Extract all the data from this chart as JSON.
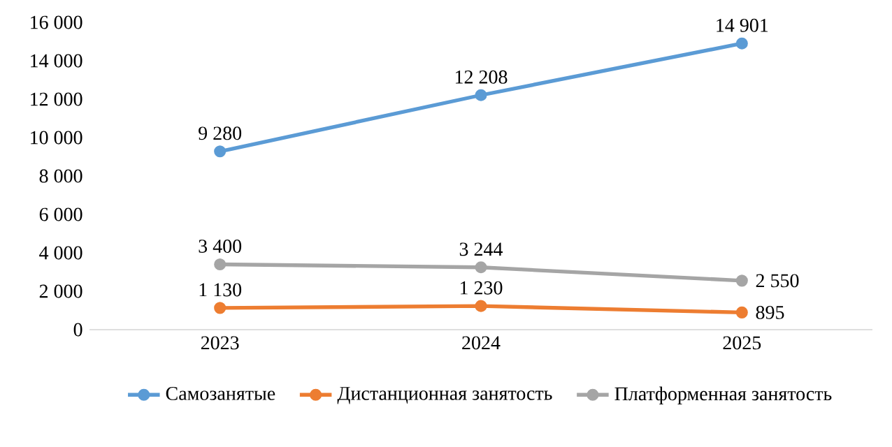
{
  "chart_data": {
    "type": "line",
    "categories": [
      "2023",
      "2024",
      "2025"
    ],
    "series": [
      {
        "name": "Самозанятые",
        "color": "#5b9bd5",
        "values": [
          9280,
          12208,
          14901
        ],
        "value_labels": [
          "9 280",
          "12 208",
          "14 901"
        ]
      },
      {
        "name": "Дистанционная занятость",
        "color": "#ed7d31",
        "values": [
          1130,
          1230,
          895
        ],
        "value_labels": [
          "1 130",
          "1 230",
          "895"
        ]
      },
      {
        "name": "Платформенная занятость",
        "color": "#a5a5a5",
        "values": [
          3400,
          3244,
          2550
        ],
        "value_labels": [
          "3 400",
          "3 244",
          "2 550"
        ]
      }
    ],
    "ylim": [
      0,
      16000
    ],
    "yticks": [
      {
        "value": 0,
        "label": "0"
      },
      {
        "value": 2000,
        "label": "2 000"
      },
      {
        "value": 4000,
        "label": "4 000"
      },
      {
        "value": 6000,
        "label": "6 000"
      },
      {
        "value": 8000,
        "label": "8 000"
      },
      {
        "value": 10000,
        "label": "10 000"
      },
      {
        "value": 12000,
        "label": "12 000"
      },
      {
        "value": 14000,
        "label": "14 000"
      },
      {
        "value": 16000,
        "label": "16 000"
      }
    ],
    "grid": false,
    "legend": "bottom",
    "marker": "circle",
    "line_style": "solid"
  }
}
